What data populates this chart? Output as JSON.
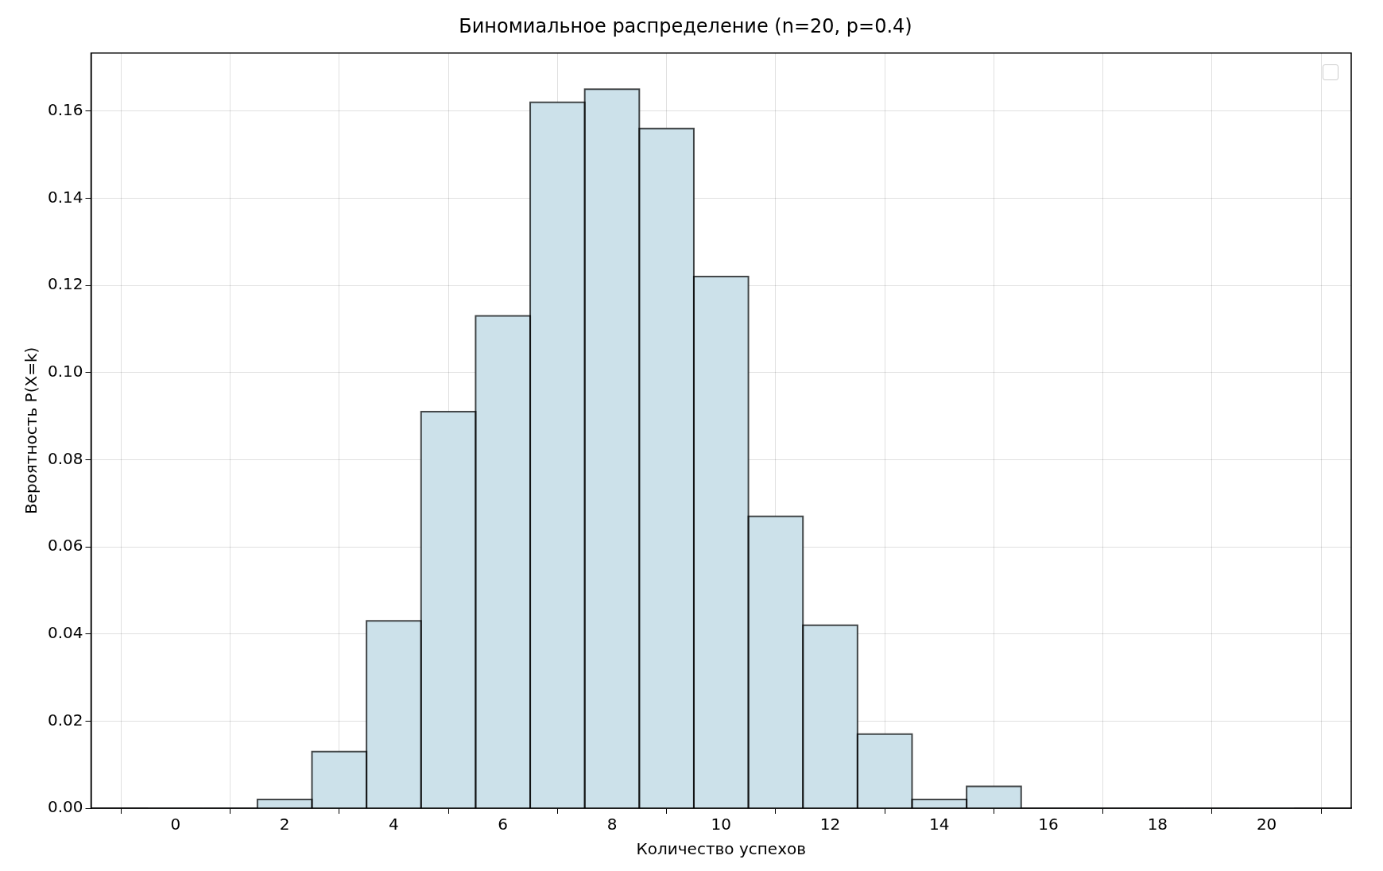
{
  "chart_data": {
    "type": "histogram",
    "title": "Биномиальное распределение (n=20, p=0.4)",
    "xlabel": "Количество успехов",
    "ylabel": "Вероятность P(X=k)",
    "bins": [
      -0.5,
      0.5,
      1.5,
      2.5,
      3.5,
      4.5,
      5.5,
      6.5,
      7.5,
      8.5,
      9.5,
      10.5,
      11.5,
      12.5,
      13.5,
      14.5,
      15.5,
      16.5,
      17.5,
      18.5,
      19.5,
      20.5
    ],
    "values": [
      0,
      0,
      0.002,
      0.013,
      0.043,
      0.091,
      0.113,
      0.162,
      0.165,
      0.156,
      0.122,
      0.067,
      0.042,
      0.017,
      0.002,
      0.005,
      0,
      0,
      0,
      0,
      0
    ],
    "color": "#cce1ea",
    "xlim": [
      -1.55,
      21.55
    ],
    "xticks": [
      0,
      2,
      4,
      6,
      8,
      10,
      12,
      14,
      16,
      18,
      20
    ],
    "ylim": [
      0,
      0.1733
    ],
    "yticks": [
      {
        "value": 0,
        "label": "0.00"
      },
      {
        "value": 0.02,
        "label": "0.02"
      },
      {
        "value": 0.04,
        "label": "0.04"
      },
      {
        "value": 0.06,
        "label": "0.06"
      },
      {
        "value": 0.08,
        "label": "0.08"
      },
      {
        "value": 0.1,
        "label": "0.10"
      },
      {
        "value": 0.12,
        "label": "0.12"
      },
      {
        "value": 0.14,
        "label": "0.14"
      },
      {
        "value": 0.16,
        "label": "0.16"
      }
    ],
    "grid": true
  }
}
